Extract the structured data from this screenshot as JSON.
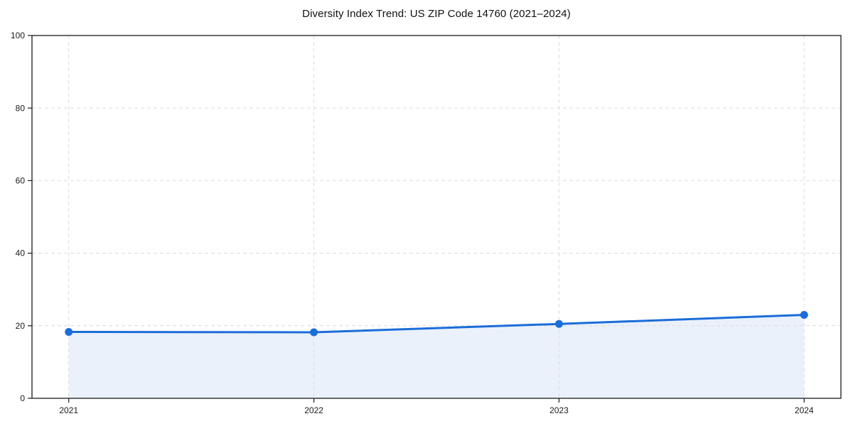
{
  "page": {
    "background": "#ffffff"
  },
  "chart_data": {
    "type": "area",
    "title": "Diversity Index Trend: US ZIP Code 14760 (2021–2024)",
    "categories": [
      "2021",
      "2022",
      "2023",
      "2024"
    ],
    "x": [
      2021,
      2022,
      2023,
      2024
    ],
    "values": [
      18.3,
      18.2,
      20.5,
      23.0
    ],
    "series": [
      {
        "name": "Diversity Index",
        "values": [
          18.3,
          18.2,
          20.5,
          23.0
        ]
      }
    ],
    "xlabel": "",
    "ylabel": "",
    "xlim": [
      2020.85,
      2024.15
    ],
    "ylim": [
      0,
      100
    ],
    "yticks": [
      0,
      20,
      40,
      60,
      80,
      100
    ],
    "grid": true,
    "grid_style": "dashed",
    "legend": "none",
    "marker": "circle",
    "line_width": 3,
    "marker_radius": 5.5
  },
  "colors": {
    "line": "#1b6dd8",
    "marker": "#1b6dd8",
    "area_fill": "#e8effb",
    "grid": "#dcdcdc",
    "axis": "#1a1a1a",
    "tick_text": "#1a1a1a",
    "title_text": "#111111",
    "background": "#ffffff"
  }
}
